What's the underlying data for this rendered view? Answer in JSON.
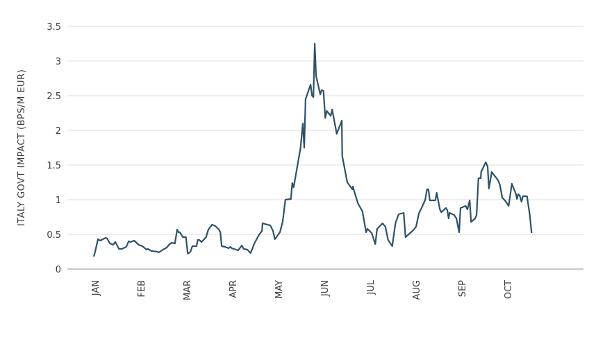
{
  "chart_data": {
    "type": "line",
    "title": "",
    "xlabel": "",
    "ylabel": "ITALY GOVT IMPACT (BPS/M EUR)",
    "ylim": [
      0,
      3.5
    ],
    "yticks": [
      0,
      0.5,
      1,
      1.5,
      2,
      2.5,
      3,
      3.5
    ],
    "ytick_labels": [
      "0",
      "0.5",
      "1",
      "1.5",
      "2",
      "2.5",
      "3",
      "3.5"
    ],
    "x_unit": "months since start of JAN",
    "xticks": [
      0,
      1,
      2,
      3,
      4,
      5,
      6,
      7,
      8,
      9
    ],
    "xtick_labels": [
      "JAN",
      "FEB",
      "MAR",
      "APR",
      "MAY",
      "JUN",
      "JUL",
      "AUG",
      "SEP",
      "OCT"
    ],
    "xlim": [
      -0.6,
      10.6
    ],
    "grid": true,
    "line_color": "#2f5168",
    "series": [
      {
        "name": "Italy Govt Impact",
        "points": [
          [
            -0.03,
            0.18
          ],
          [
            0,
            0.25
          ],
          [
            0.06,
            0.43
          ],
          [
            0.11,
            0.41
          ],
          [
            0.23,
            0.45
          ],
          [
            0.26,
            0.44
          ],
          [
            0.32,
            0.37
          ],
          [
            0.39,
            0.35
          ],
          [
            0.44,
            0.39
          ],
          [
            0.52,
            0.29
          ],
          [
            0.58,
            0.29
          ],
          [
            0.68,
            0.32
          ],
          [
            0.73,
            0.4
          ],
          [
            0.77,
            0.39
          ],
          [
            0.85,
            0.41
          ],
          [
            0.95,
            0.35
          ],
          [
            1.03,
            0.33
          ],
          [
            1.12,
            0.28
          ],
          [
            1.15,
            0.29
          ],
          [
            1.23,
            0.26
          ],
          [
            1.35,
            0.25
          ],
          [
            1.39,
            0.24
          ],
          [
            1.48,
            0.28
          ],
          [
            1.56,
            0.31
          ],
          [
            1.61,
            0.35
          ],
          [
            1.67,
            0.38
          ],
          [
            1.74,
            0.37
          ],
          [
            1.79,
            0.57
          ],
          [
            1.82,
            0.53
          ],
          [
            1.85,
            0.53
          ],
          [
            1.91,
            0.46
          ],
          [
            1.98,
            0.46
          ],
          [
            2.02,
            0.22
          ],
          [
            2.08,
            0.25
          ],
          [
            2.12,
            0.33
          ],
          [
            2.21,
            0.33
          ],
          [
            2.24,
            0.42
          ],
          [
            2.27,
            0.42
          ],
          [
            2.32,
            0.39
          ],
          [
            2.42,
            0.46
          ],
          [
            2.47,
            0.57
          ],
          [
            2.55,
            0.64
          ],
          [
            2.62,
            0.62
          ],
          [
            2.7,
            0.57
          ],
          [
            2.73,
            0.53
          ],
          [
            2.76,
            0.33
          ],
          [
            2.83,
            0.32
          ],
          [
            2.91,
            0.3
          ],
          [
            2.95,
            0.32
          ],
          [
            2.98,
            0.3
          ],
          [
            3.12,
            0.27
          ],
          [
            3.2,
            0.34
          ],
          [
            3.24,
            0.29
          ],
          [
            3.32,
            0.28
          ],
          [
            3.39,
            0.23
          ],
          [
            3.48,
            0.38
          ],
          [
            3.58,
            0.5
          ],
          [
            3.64,
            0.55
          ],
          [
            3.65,
            0.66
          ],
          [
            3.76,
            0.64
          ],
          [
            3.82,
            0.63
          ],
          [
            3.88,
            0.55
          ],
          [
            3.92,
            0.43
          ],
          [
            4.03,
            0.53
          ],
          [
            4.09,
            0.68
          ],
          [
            4.15,
            1.0
          ],
          [
            4.27,
            1.01
          ],
          [
            4.3,
            1.24
          ],
          [
            4.33,
            1.18
          ],
          [
            4.48,
            1.75
          ],
          [
            4.53,
            2.1
          ],
          [
            4.56,
            1.75
          ],
          [
            4.59,
            2.45
          ],
          [
            4.7,
            2.66
          ],
          [
            4.73,
            2.5
          ],
          [
            4.76,
            2.48
          ],
          [
            4.79,
            3.25
          ],
          [
            4.82,
            2.78
          ],
          [
            4.91,
            2.52
          ],
          [
            4.94,
            2.58
          ],
          [
            4.98,
            2.57
          ],
          [
            5.02,
            2.18
          ],
          [
            5.05,
            2.28
          ],
          [
            5.14,
            2.21
          ],
          [
            5.17,
            2.3
          ],
          [
            5.27,
            1.95
          ],
          [
            5.38,
            2.14
          ],
          [
            5.39,
            1.63
          ],
          [
            5.5,
            1.25
          ],
          [
            5.61,
            1.15
          ],
          [
            5.62,
            1.19
          ],
          [
            5.73,
            0.95
          ],
          [
            5.83,
            0.83
          ],
          [
            5.91,
            0.53
          ],
          [
            5.94,
            0.58
          ],
          [
            6.03,
            0.52
          ],
          [
            6.11,
            0.36
          ],
          [
            6.15,
            0.58
          ],
          [
            6.27,
            0.66
          ],
          [
            6.33,
            0.61
          ],
          [
            6.39,
            0.42
          ],
          [
            6.48,
            0.33
          ],
          [
            6.55,
            0.66
          ],
          [
            6.62,
            0.79
          ],
          [
            6.73,
            0.81
          ],
          [
            6.77,
            0.46
          ],
          [
            6.94,
            0.56
          ],
          [
            7.0,
            0.61
          ],
          [
            7.06,
            0.8
          ],
          [
            7.12,
            0.88
          ],
          [
            7.2,
            1.0
          ],
          [
            7.24,
            1.15
          ],
          [
            7.27,
            1.15
          ],
          [
            7.3,
            0.99
          ],
          [
            7.42,
            0.99
          ],
          [
            7.45,
            1.1
          ],
          [
            7.52,
            0.86
          ],
          [
            7.55,
            0.82
          ],
          [
            7.65,
            0.88
          ],
          [
            7.68,
            0.85
          ],
          [
            7.71,
            0.73
          ],
          [
            7.73,
            0.81
          ],
          [
            7.83,
            0.78
          ],
          [
            7.88,
            0.73
          ],
          [
            7.94,
            0.53
          ],
          [
            7.97,
            0.88
          ],
          [
            8.08,
            0.91
          ],
          [
            8.12,
            0.86
          ],
          [
            8.17,
            0.99
          ],
          [
            8.2,
            0.68
          ],
          [
            8.29,
            0.73
          ],
          [
            8.32,
            0.78
          ],
          [
            8.36,
            1.31
          ],
          [
            8.41,
            1.31
          ],
          [
            8.42,
            1.4
          ],
          [
            8.52,
            1.54
          ],
          [
            8.56,
            1.48
          ],
          [
            8.59,
            1.16
          ],
          [
            8.65,
            1.4
          ],
          [
            8.79,
            1.28
          ],
          [
            8.83,
            1.21
          ],
          [
            8.88,
            1.03
          ],
          [
            8.95,
            0.98
          ],
          [
            9.02,
            0.91
          ],
          [
            9.09,
            1.23
          ],
          [
            9.18,
            1.08
          ],
          [
            9.2,
            1.01
          ],
          [
            9.23,
            1.08
          ],
          [
            9.26,
            1.06
          ],
          [
            9.3,
            0.97
          ],
          [
            9.33,
            1.05
          ],
          [
            9.42,
            1.05
          ],
          [
            9.48,
            0.78
          ],
          [
            9.52,
            0.52
          ]
        ]
      }
    ]
  }
}
